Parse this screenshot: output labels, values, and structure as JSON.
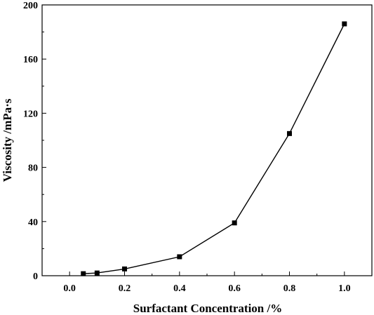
{
  "chart_data": {
    "type": "line",
    "title": "",
    "xlabel": "Surfactant Concentration /%",
    "ylabel": "Viscosity /mPa·s",
    "xlim": [
      -0.1,
      1.1
    ],
    "ylim": [
      0,
      200
    ],
    "xticks": [
      "0.0",
      "0.2",
      "0.4",
      "0.6",
      "0.8",
      "1.0"
    ],
    "xtick_values": [
      0.0,
      0.2,
      0.4,
      0.6,
      0.8,
      1.0
    ],
    "yticks": [
      "0",
      "40",
      "80",
      "120",
      "160",
      "200"
    ],
    "ytick_values": [
      0,
      40,
      80,
      120,
      160,
      200
    ],
    "grid": false,
    "marker": "square",
    "series": [
      {
        "x": [
          0.05,
          0.1,
          0.2,
          0.4,
          0.6,
          0.8,
          1.0
        ],
        "y": [
          1.5,
          2.0,
          5.0,
          14.0,
          39.0,
          105.0,
          186.0
        ],
        "color": "#000000"
      }
    ]
  }
}
